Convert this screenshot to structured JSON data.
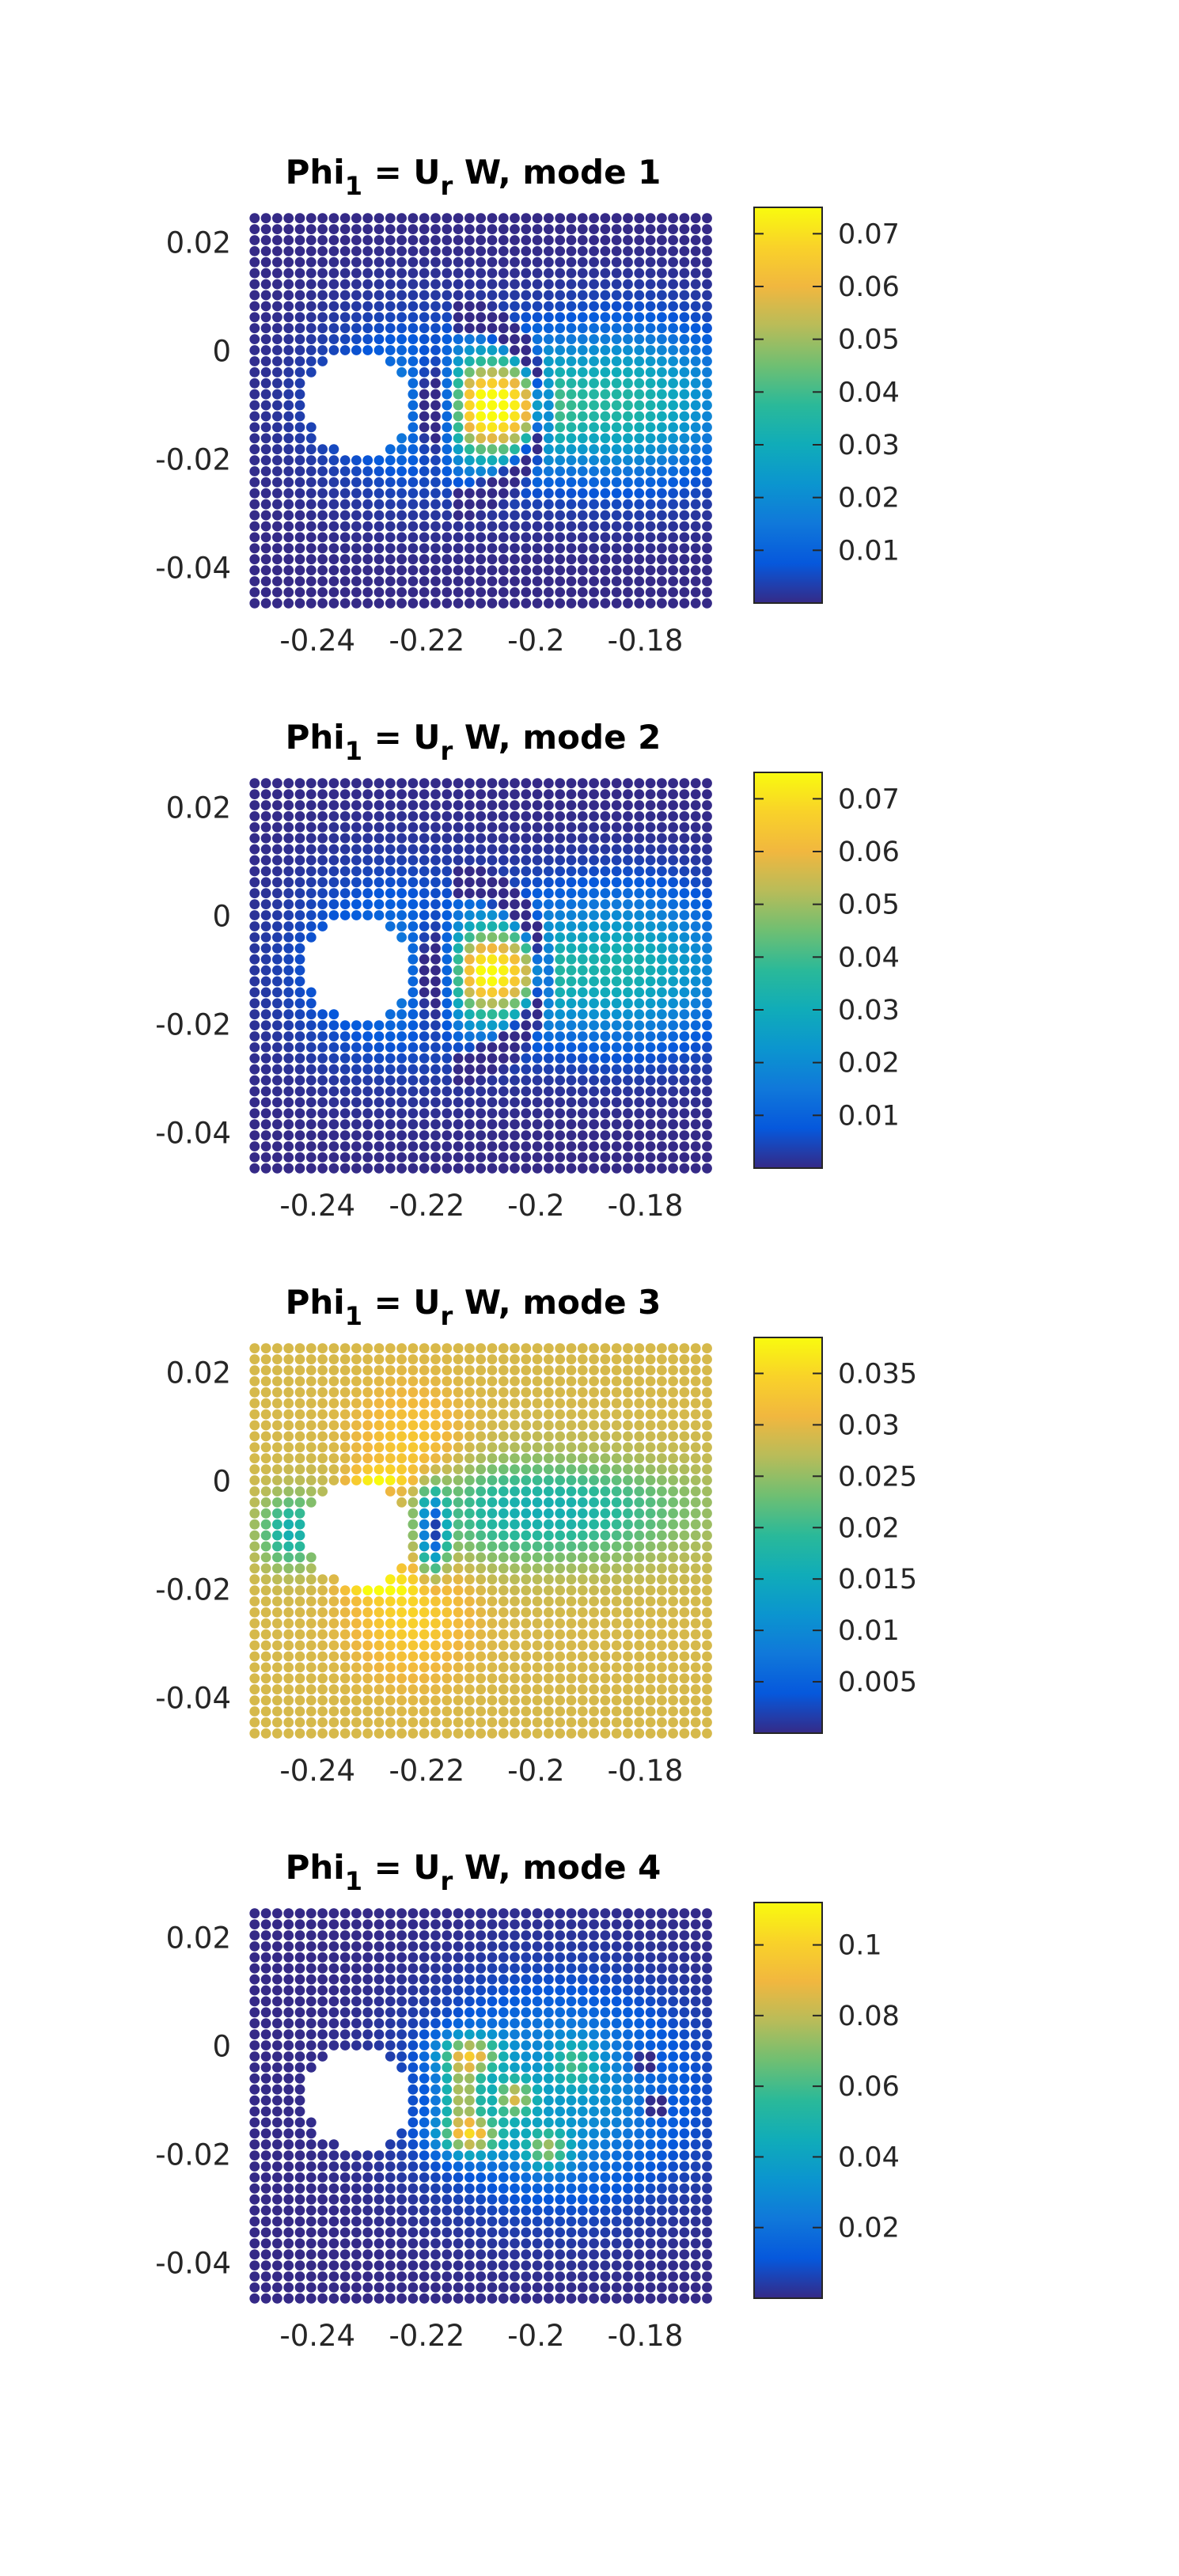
{
  "figure": {
    "background": "#ffffff",
    "colormap": "parula"
  },
  "chart_data": [
    {
      "type": "scatter",
      "title": {
        "main": "Phi",
        "sub1": "1",
        "mid": " = U",
        "sub2": "r",
        "tail": " W, mode 1"
      },
      "xlim": [
        -0.2535,
        -0.1695
      ],
      "ylim": [
        -0.0465,
        0.0265
      ],
      "xticks": [
        -0.24,
        -0.22,
        -0.2,
        -0.18
      ],
      "xtick_labels": [
        "-0.24",
        "-0.22",
        "-0.2",
        "-0.18"
      ],
      "yticks": [
        0.02,
        0,
        -0.02,
        -0.04
      ],
      "ytick_labels": [
        "0.02",
        "0",
        "-0.02",
        "-0.04"
      ],
      "grid": false,
      "points": {
        "x_start": -0.2515,
        "x_step": 0.00207,
        "x_count": 41,
        "y_start": 0.0245,
        "y_step": -0.00203,
        "y_count": 36
      },
      "hole": {
        "x": -0.2325,
        "y": -0.0095,
        "r": 0.0095
      },
      "background_value": 0.0,
      "field": [
        {
          "x": -0.209,
          "y": -0.0105,
          "sx": 0.008,
          "sy": 0.0065,
          "a": 0.07
        },
        {
          "x": -0.218,
          "y": -0.0105,
          "sx": 0.003,
          "sy": 0.006,
          "a": -0.055
        },
        {
          "x": -0.184,
          "y": -0.0095,
          "sx": 0.014,
          "sy": 0.0095,
          "a": 0.035
        },
        {
          "x": -0.224,
          "y": -0.0095,
          "sx": 0.012,
          "sy": 0.011,
          "a": 0.012
        }
      ],
      "field_rings": [
        {
          "x": -0.216,
          "y": -0.0105,
          "r": 0.0172,
          "w": 0.0013,
          "a": -0.04
        }
      ],
      "colorbar": {
        "min": 0.0,
        "max": 0.075,
        "ticks": [
          0.01,
          0.02,
          0.03,
          0.04,
          0.05,
          0.06,
          0.07
        ],
        "tick_labels": [
          "0.01",
          "0.02",
          "0.03",
          "0.04",
          "0.05",
          "0.06",
          "0.07"
        ]
      }
    },
    {
      "type": "scatter",
      "title": {
        "main": "Phi",
        "sub1": "1",
        "mid": " = U",
        "sub2": "r",
        "tail": " W, mode 2"
      },
      "xlim": [
        -0.2535,
        -0.1695
      ],
      "ylim": [
        -0.0465,
        0.0265
      ],
      "xticks": [
        -0.24,
        -0.22,
        -0.2,
        -0.18
      ],
      "xtick_labels": [
        "-0.24",
        "-0.22",
        "-0.2",
        "-0.18"
      ],
      "yticks": [
        0.02,
        0,
        -0.02,
        -0.04
      ],
      "ytick_labels": [
        "0.02",
        "0",
        "-0.02",
        "-0.04"
      ],
      "grid": false,
      "points": {
        "x_start": -0.2515,
        "x_step": 0.00207,
        "x_count": 41,
        "y_start": 0.0245,
        "y_step": -0.00203,
        "y_count": 36
      },
      "hole": {
        "x": -0.2325,
        "y": -0.0095,
        "r": 0.0095
      },
      "background_value": 0.0,
      "field": [
        {
          "x": -0.209,
          "y": -0.0105,
          "sx": 0.0075,
          "sy": 0.006,
          "a": 0.065
        },
        {
          "x": -0.218,
          "y": -0.0105,
          "sx": 0.003,
          "sy": 0.006,
          "a": -0.05
        },
        {
          "x": -0.184,
          "y": -0.0095,
          "sx": 0.014,
          "sy": 0.0095,
          "a": 0.033
        },
        {
          "x": -0.226,
          "y": -0.0095,
          "sx": 0.013,
          "sy": 0.012,
          "a": 0.014
        }
      ],
      "field_rings": [
        {
          "x": -0.216,
          "y": -0.0105,
          "r": 0.0172,
          "w": 0.0013,
          "a": -0.04
        }
      ],
      "colorbar": {
        "min": 0.0,
        "max": 0.075,
        "ticks": [
          0.01,
          0.02,
          0.03,
          0.04,
          0.05,
          0.06,
          0.07
        ],
        "tick_labels": [
          "0.01",
          "0.02",
          "0.03",
          "0.04",
          "0.05",
          "0.06",
          "0.07"
        ]
      }
    },
    {
      "type": "scatter",
      "title": {
        "main": "Phi",
        "sub1": "1",
        "mid": " = U",
        "sub2": "r",
        "tail": " W, mode 3"
      },
      "xlim": [
        -0.2535,
        -0.1695
      ],
      "ylim": [
        -0.0465,
        0.0265
      ],
      "xticks": [
        -0.24,
        -0.22,
        -0.2,
        -0.18
      ],
      "xtick_labels": [
        "-0.24",
        "-0.22",
        "-0.2",
        "-0.18"
      ],
      "yticks": [
        0.02,
        0,
        -0.02,
        -0.04
      ],
      "ytick_labels": [
        "0.02",
        "0",
        "-0.02",
        "-0.04"
      ],
      "grid": false,
      "points": {
        "x_start": -0.2515,
        "x_step": 0.00207,
        "x_count": 41,
        "y_start": 0.0245,
        "y_step": -0.00203,
        "y_count": 36
      },
      "hole": {
        "x": -0.2325,
        "y": -0.0095,
        "r": 0.0095
      },
      "background_value": 0.029,
      "field": [
        {
          "x": -0.2,
          "y": -0.0055,
          "sx": 0.02,
          "sy": 0.0065,
          "a": -0.013
        },
        {
          "x": -0.223,
          "y": 0.002,
          "sx": 0.007,
          "sy": 0.009,
          "a": 0.006
        },
        {
          "x": -0.223,
          "y": -0.022,
          "sx": 0.007,
          "sy": 0.009,
          "a": 0.006
        },
        {
          "x": -0.245,
          "y": -0.0095,
          "sx": 0.004,
          "sy": 0.0045,
          "a": -0.012
        },
        {
          "x": -0.219,
          "y": -0.0095,
          "sx": 0.0018,
          "sy": 0.005,
          "a": -0.026
        },
        {
          "x": -0.229,
          "y": 0.0005,
          "sx": 0.0035,
          "sy": 0.0012,
          "a": 0.009
        },
        {
          "x": -0.229,
          "y": -0.0195,
          "sx": 0.0035,
          "sy": 0.0012,
          "a": 0.009
        }
      ],
      "field_rings": [],
      "colorbar": {
        "min": 0.0,
        "max": 0.0385,
        "ticks": [
          0.005,
          0.01,
          0.015,
          0.02,
          0.025,
          0.03,
          0.035
        ],
        "tick_labels": [
          "0.005",
          "0.01",
          "0.015",
          "0.02",
          "0.025",
          "0.03",
          "0.035"
        ]
      }
    },
    {
      "type": "scatter",
      "title": {
        "main": "Phi",
        "sub1": "1",
        "mid": " = U",
        "sub2": "r",
        "tail": " W, mode 4"
      },
      "xlim": [
        -0.2535,
        -0.1695
      ],
      "ylim": [
        -0.0465,
        0.0265
      ],
      "xticks": [
        -0.24,
        -0.22,
        -0.2,
        -0.18
      ],
      "xtick_labels": [
        "-0.24",
        "-0.22",
        "-0.2",
        "-0.18"
      ],
      "yticks": [
        0.02,
        0,
        -0.02,
        -0.04
      ],
      "ytick_labels": [
        "0.02",
        "0",
        "-0.02",
        "-0.04"
      ],
      "grid": false,
      "points": {
        "x_start": -0.2515,
        "x_step": 0.00207,
        "x_count": 41,
        "y_start": 0.0245,
        "y_step": -0.00203,
        "y_count": 36
      },
      "hole": {
        "x": -0.2325,
        "y": -0.0095,
        "r": 0.0095
      },
      "background_value": 0.0,
      "field": [
        {
          "x": -0.196,
          "y": -0.009,
          "sx": 0.016,
          "sy": 0.013,
          "a": 0.035
        },
        {
          "x": -0.212,
          "y": -0.0015,
          "sx": 0.004,
          "sy": 0.0025,
          "a": 0.07
        },
        {
          "x": -0.212,
          "y": -0.0165,
          "sx": 0.004,
          "sy": 0.0025,
          "a": 0.075
        },
        {
          "x": -0.2135,
          "y": -0.009,
          "sx": 0.0025,
          "sy": 0.004,
          "a": 0.06
        },
        {
          "x": -0.204,
          "y": -0.0095,
          "sx": 0.0025,
          "sy": 0.0025,
          "a": 0.055
        },
        {
          "x": -0.198,
          "y": -0.019,
          "sx": 0.003,
          "sy": 0.0025,
          "a": 0.05
        },
        {
          "x": -0.193,
          "y": -0.003,
          "sx": 0.003,
          "sy": 0.003,
          "a": 0.03
        },
        {
          "x": -0.18,
          "y": -0.003,
          "sx": 0.0015,
          "sy": 0.0015,
          "a": -0.03
        },
        {
          "x": -0.178,
          "y": -0.011,
          "sx": 0.0015,
          "sy": 0.0015,
          "a": -0.03
        }
      ],
      "field_rings": [],
      "colorbar": {
        "min": 0.0,
        "max": 0.112,
        "ticks": [
          0.02,
          0.04,
          0.06,
          0.08,
          0.1
        ],
        "tick_labels": [
          "0.02",
          "0.04",
          "0.06",
          "0.08",
          "0.1"
        ]
      }
    }
  ]
}
